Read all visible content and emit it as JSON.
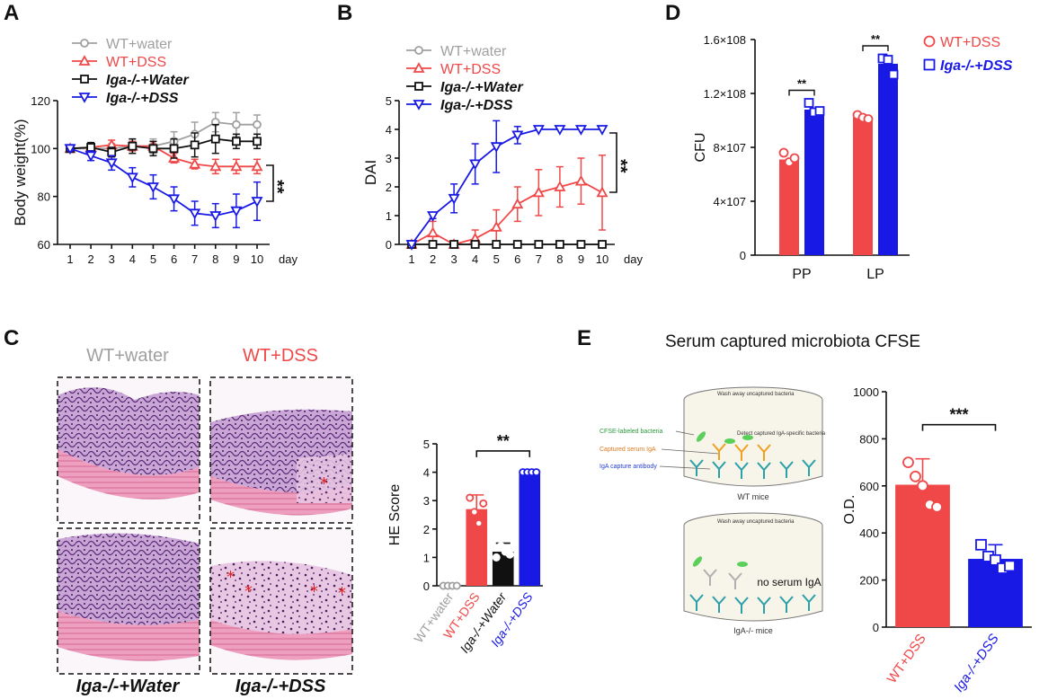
{
  "colors": {
    "gray": "#a0a0a0",
    "red": "#f04848",
    "black": "#111111",
    "blue": "#1919e6"
  },
  "panels": {
    "A": "A",
    "B": "B",
    "C": "C",
    "D": "D",
    "E": "E"
  },
  "chart_data": [
    {
      "panel": "A",
      "type": "line",
      "title": "",
      "xlabel": "day",
      "ylabel": "Body weight(%)",
      "x": [
        1,
        2,
        3,
        4,
        5,
        6,
        7,
        8,
        9,
        10
      ],
      "xticks": [
        "1",
        "2",
        "3",
        "4",
        "5",
        "6",
        "7",
        "8",
        "9",
        "10"
      ],
      "ylim": [
        60,
        120
      ],
      "yticks": [
        "60",
        "80",
        "100",
        "120"
      ],
      "significance": "**",
      "series": [
        {
          "name": "WT+water",
          "color": "#a0a0a0",
          "marker": "circle",
          "values": [
            100,
            100,
            100,
            101,
            101,
            103,
            106,
            111,
            110,
            110
          ],
          "errors": [
            1,
            1,
            2,
            3,
            3,
            4,
            5,
            4,
            5,
            4
          ]
        },
        {
          "name": "WT+DSS",
          "color": "#f04848",
          "marker": "triangle-up",
          "values": [
            100,
            100.5,
            101.5,
            101,
            101,
            96,
            93.5,
            92.5,
            92.5,
            92.5
          ],
          "errors": [
            1,
            1,
            2,
            2,
            2,
            2,
            2,
            3,
            3,
            3
          ]
        },
        {
          "name": "Iga-/-+Water",
          "color": "#111111",
          "marker": "square",
          "values": [
            100,
            100.5,
            98.5,
            101,
            100,
            100,
            101.5,
            104,
            103,
            103
          ],
          "errors": [
            1,
            2,
            2,
            3,
            3,
            4,
            5,
            6,
            3,
            3
          ]
        },
        {
          "name": "Iga-/-+DSS",
          "color": "#1919e6",
          "marker": "triangle-down",
          "values": [
            100,
            97,
            94,
            88,
            84,
            79,
            73,
            72,
            74,
            78
          ],
          "errors": [
            1,
            2,
            3,
            4,
            5,
            5,
            5,
            5,
            7,
            8
          ]
        }
      ]
    },
    {
      "panel": "B",
      "type": "line",
      "title": "",
      "xlabel": "day",
      "ylabel": "DAI",
      "x": [
        1,
        2,
        3,
        4,
        5,
        6,
        7,
        8,
        9,
        10
      ],
      "xticks": [
        "1",
        "2",
        "3",
        "4",
        "5",
        "6",
        "7",
        "8",
        "9",
        "10"
      ],
      "ylim": [
        0,
        5
      ],
      "yticks": [
        "0",
        "1",
        "2",
        "3",
        "4",
        "5"
      ],
      "significance": "**",
      "series": [
        {
          "name": "WT+water",
          "color": "#a0a0a0",
          "marker": "circle",
          "values": [
            0,
            0,
            0,
            0,
            0,
            0,
            0,
            0,
            0,
            0
          ],
          "errors": [
            0,
            0,
            0,
            0,
            0,
            0,
            0,
            0,
            0,
            0
          ]
        },
        {
          "name": "WT+DSS",
          "color": "#f04848",
          "marker": "triangle-up",
          "values": [
            0,
            0.4,
            0,
            0.2,
            0.6,
            1.4,
            1.8,
            2.0,
            2.2,
            1.8
          ],
          "errors": [
            0,
            0.4,
            0,
            0.3,
            0.6,
            0.6,
            0.8,
            0.7,
            0.8,
            1.3
          ]
        },
        {
          "name": "Iga-/-+Water",
          "color": "#111111",
          "marker": "square",
          "values": [
            0,
            0,
            0,
            0,
            0,
            0,
            0,
            0,
            0,
            0
          ],
          "errors": [
            0,
            0,
            0,
            0,
            0,
            0,
            0,
            0,
            0,
            0
          ]
        },
        {
          "name": "Iga-/-+DSS",
          "color": "#1919e6",
          "marker": "triangle-down",
          "values": [
            0,
            1.0,
            1.6,
            2.8,
            3.4,
            3.8,
            4.0,
            4.0,
            4.0,
            4.0
          ],
          "errors": [
            0,
            0.1,
            0.5,
            0.7,
            0.9,
            0.3,
            0,
            0,
            0,
            0
          ]
        }
      ]
    },
    {
      "panel": "C",
      "type": "bar",
      "title": "",
      "xlabel": "",
      "ylabel": "HE Score",
      "categories": [
        "WT+water",
        "WT+DSS",
        "Iga-/-+Water",
        "Iga-/-+DSS"
      ],
      "category_colors": [
        "#a0a0a0",
        "#f04848",
        "#111111",
        "#1919e6"
      ],
      "values": [
        0,
        2.7,
        1.2,
        4.0
      ],
      "errors": [
        0,
        0.5,
        0.3,
        0
      ],
      "points": [
        [
          0,
          0,
          0,
          0
        ],
        [
          3.1,
          2.6,
          2.2,
          2.9
        ],
        [
          1.0,
          1.4,
          1.2,
          1.1
        ],
        [
          4,
          4,
          4,
          4
        ]
      ],
      "ylim": [
        0,
        5
      ],
      "yticks": [
        "0",
        "1",
        "2",
        "3",
        "4",
        "5"
      ],
      "significance": "**",
      "images": {
        "top_left": "WT+water",
        "top_right": "WT+DSS",
        "bottom_left": "Iga-/-+Water",
        "bottom_right": "Iga-/-+DSS"
      }
    },
    {
      "panel": "D",
      "type": "bar",
      "title": "",
      "xlabel": "",
      "ylabel": "CFU",
      "categories": [
        "PP",
        "LP"
      ],
      "series": [
        {
          "name": "WT+DSS",
          "color": "#f04848",
          "marker": "circle",
          "values": [
            71000000,
            102000000
          ],
          "points": [
            [
              76000000,
              69000000,
              72000000
            ],
            [
              104000000,
              102000000,
              101000000
            ]
          ]
        },
        {
          "name": "Iga-/-+DSS",
          "color": "#1919e6",
          "marker": "square",
          "values": [
            108000000,
            142000000
          ],
          "points": [
            [
              113000000,
              106000000,
              107000000
            ],
            [
              146000000,
              145000000,
              134000000
            ]
          ]
        }
      ],
      "ylim": [
        0,
        160000000
      ],
      "yticks": [
        "0",
        "4×107",
        "8×107",
        "1.2×108",
        "1.6×108"
      ],
      "significance": [
        "**",
        "**"
      ]
    },
    {
      "panel": "E",
      "type": "bar",
      "title": "Serum captured microbiota CFSE",
      "xlabel": "",
      "ylabel": "O.D.",
      "categories": [
        "WT+DSS",
        "Iga-/-+DSS"
      ],
      "category_colors": [
        "#f04848",
        "#1919e6"
      ],
      "values": [
        605,
        290
      ],
      "errors": [
        110,
        60
      ],
      "points": [
        [
          700,
          640,
          600,
          520,
          510
        ],
        [
          350,
          300,
          285,
          250,
          260
        ]
      ],
      "ylim": [
        0,
        1000
      ],
      "yticks": [
        "0",
        "200",
        "400",
        "600",
        "800",
        "1000"
      ],
      "significance": "***",
      "schematic": {
        "wash": "Wash away uncaptured bacteria",
        "detect": "Detect captured IgA-specific bacteria",
        "cfse": "CFSE-labeled bacteria",
        "serum": "Captured serum IgA",
        "capture": "IgA capture antibody",
        "wt": "WT mice",
        "noserum": "no serum IgA",
        "iga": "IgA-/- mice"
      }
    }
  ]
}
